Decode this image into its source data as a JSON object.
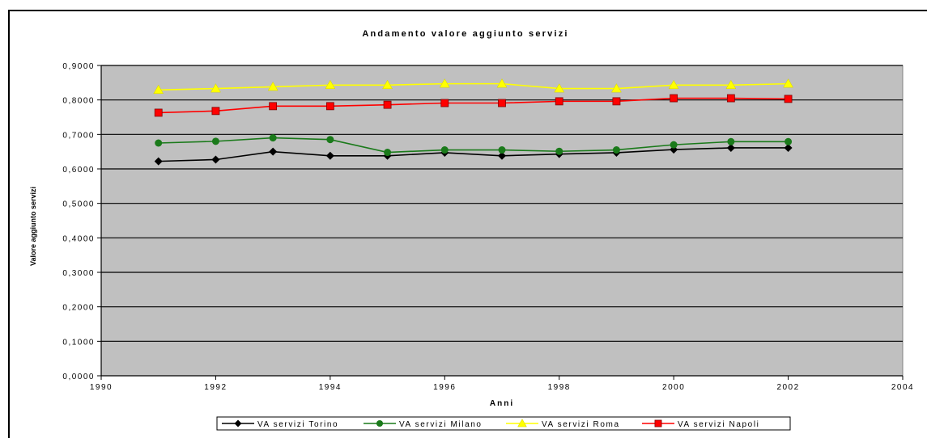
{
  "chart_data": {
    "type": "line",
    "title": "Andamento valore aggiunto servizi",
    "xlabel": "Anni",
    "ylabel": "Valore aggiunto servizi",
    "xlim": [
      1990,
      2004
    ],
    "ylim": [
      0,
      0.9
    ],
    "xticks": [
      1990,
      1992,
      1994,
      1996,
      1998,
      2000,
      2002,
      2004
    ],
    "yticks": [
      0,
      0.1,
      0.2,
      0.3,
      0.4,
      0.5,
      0.6,
      0.7,
      0.8,
      0.9
    ],
    "xtick_labels": [
      "1990",
      "1992",
      "1994",
      "1996",
      "1998",
      "2000",
      "2002",
      "2004"
    ],
    "ytick_labels": [
      "0,0000",
      "0,1000",
      "0,2000",
      "0,3000",
      "0,4000",
      "0,5000",
      "0,6000",
      "0,7000",
      "0,8000",
      "0,9000"
    ],
    "grid": "horizontal",
    "background_color": "#c0c0c0",
    "legend_position": "bottom",
    "x": [
      1991,
      1992,
      1993,
      1994,
      1995,
      1996,
      1997,
      1998,
      1999,
      2000,
      2001,
      2002
    ],
    "series": [
      {
        "name": "VA servizi Torino",
        "color": "#000000",
        "marker": "diamond",
        "values": [
          0.622,
          0.627,
          0.65,
          0.638,
          0.638,
          0.647,
          0.638,
          0.643,
          0.647,
          0.656,
          0.661,
          0.661
        ]
      },
      {
        "name": "VA servizi Milano",
        "color": "#1a7a1a",
        "marker": "circle",
        "values": [
          0.675,
          0.68,
          0.69,
          0.685,
          0.648,
          0.655,
          0.655,
          0.651,
          0.655,
          0.67,
          0.679,
          0.679
        ]
      },
      {
        "name": "VA servizi Roma",
        "color": "#ffff00",
        "marker": "triangle",
        "values": [
          0.829,
          0.833,
          0.838,
          0.843,
          0.843,
          0.847,
          0.847,
          0.833,
          0.833,
          0.843,
          0.843,
          0.847
        ]
      },
      {
        "name": "VA servizi Napoli",
        "color": "#ff0000",
        "marker": "square",
        "values": [
          0.763,
          0.768,
          0.782,
          0.782,
          0.786,
          0.791,
          0.791,
          0.796,
          0.796,
          0.805,
          0.805,
          0.803
        ]
      }
    ]
  }
}
